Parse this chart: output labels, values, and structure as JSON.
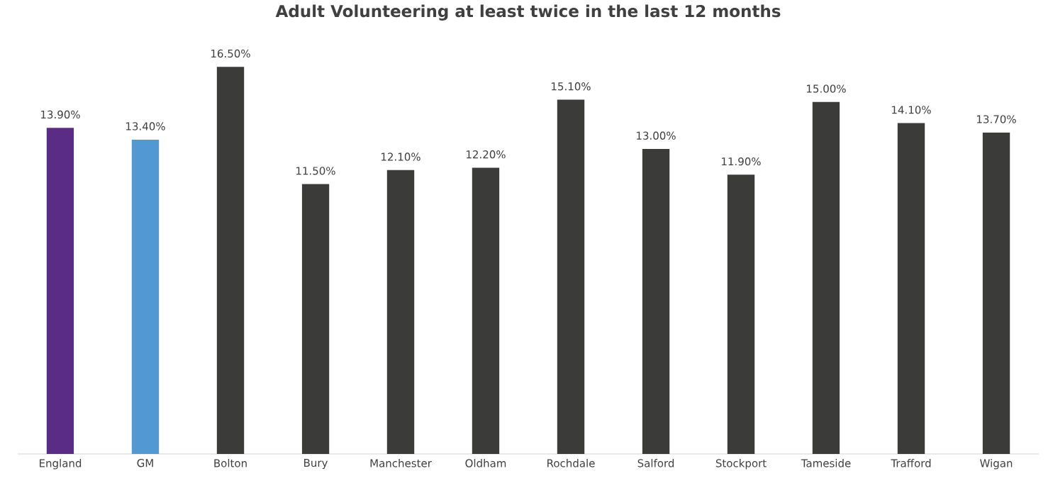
{
  "chart_data": {
    "type": "bar",
    "title": "Adult Volunteering at least twice in the last 12 months",
    "categories": [
      "England",
      "GM",
      "Bolton",
      "Bury",
      "Manchester",
      "Oldham",
      "Rochdale",
      "Salford",
      "Stockport",
      "Tameside",
      "Trafford",
      "Wigan"
    ],
    "values": [
      13.9,
      13.4,
      16.5,
      11.5,
      12.1,
      12.2,
      15.1,
      13.0,
      11.9,
      15.0,
      14.1,
      13.7
    ],
    "value_labels": [
      "13.90%",
      "13.40%",
      "16.50%",
      "11.50%",
      "12.10%",
      "12.20%",
      "15.10%",
      "13.00%",
      "11.90%",
      "15.00%",
      "14.10%",
      "13.70%"
    ],
    "colors": [
      "#5b2c86",
      "#5299d3",
      "#3b3b3a",
      "#3b3b3a",
      "#3b3b3a",
      "#3b3b3a",
      "#3b3b3a",
      "#3b3b3a",
      "#3b3b3a",
      "#3b3b3a",
      "#3b3b3a",
      "#3b3b3a"
    ]
  }
}
